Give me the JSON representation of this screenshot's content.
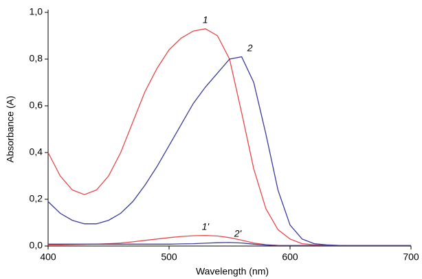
{
  "chart_data": {
    "type": "line",
    "x_label": "Wavelength (nm)",
    "y_label": "Absorbance (A)",
    "x": [
      400,
      410,
      420,
      430,
      440,
      450,
      460,
      470,
      480,
      490,
      500,
      510,
      520,
      530,
      540,
      550,
      560,
      570,
      580,
      590,
      600,
      610,
      620,
      630,
      640,
      650,
      660,
      670,
      680,
      690,
      700
    ],
    "series": [
      {
        "name": "1",
        "color": "#e8474b",
        "values": [
          0.4,
          0.3,
          0.24,
          0.22,
          0.24,
          0.3,
          0.4,
          0.53,
          0.66,
          0.76,
          0.84,
          0.89,
          0.92,
          0.93,
          0.9,
          0.8,
          0.57,
          0.33,
          0.16,
          0.07,
          0.03,
          0.01,
          0.005,
          0.003,
          0.002,
          0.002,
          0.002,
          0.002,
          0.002,
          0.002,
          0.002
        ]
      },
      {
        "name": "2",
        "color": "#3a3a9c",
        "values": [
          0.19,
          0.14,
          0.11,
          0.095,
          0.095,
          0.11,
          0.14,
          0.19,
          0.26,
          0.34,
          0.43,
          0.52,
          0.61,
          0.68,
          0.74,
          0.8,
          0.81,
          0.7,
          0.48,
          0.24,
          0.09,
          0.03,
          0.01,
          0.005,
          0.003,
          0.002,
          0.002,
          0.002,
          0.002,
          0.002,
          0.002
        ]
      },
      {
        "name": "1'",
        "color": "#e8474b",
        "values": [
          0.005,
          0.005,
          0.006,
          0.007,
          0.008,
          0.01,
          0.013,
          0.018,
          0.024,
          0.03,
          0.036,
          0.041,
          0.044,
          0.045,
          0.043,
          0.036,
          0.025,
          0.013,
          0.006,
          0.003,
          0.002,
          0.002,
          0.002,
          0.002,
          0.002,
          0.002,
          0.002,
          0.002,
          0.002,
          0.002,
          0.002
        ]
      },
      {
        "name": "2'",
        "color": "#3a3a9c",
        "values": [
          0.008,
          0.008,
          0.008,
          0.008,
          0.008,
          0.008,
          0.008,
          0.008,
          0.008,
          0.008,
          0.008,
          0.009,
          0.01,
          0.012,
          0.014,
          0.015,
          0.013,
          0.008,
          0.004,
          0.002,
          0.002,
          0.002,
          0.002,
          0.002,
          0.002,
          0.002,
          0.002,
          0.002,
          0.002,
          0.002,
          0.002
        ]
      }
    ],
    "xlim": [
      400,
      700
    ],
    "xticks": [
      400,
      500,
      600,
      700
    ],
    "ylim": [
      0,
      1.0
    ],
    "yticks": [
      {
        "value": 0,
        "label": "0,0"
      },
      {
        "value": 0.2,
        "label": "0,2"
      },
      {
        "value": 0.4,
        "label": "0,4"
      },
      {
        "value": 0.6,
        "label": "0,6"
      },
      {
        "value": 0.8,
        "label": "0,8"
      },
      {
        "value": 1.0,
        "label": "1,0"
      }
    ],
    "grid": false
  }
}
